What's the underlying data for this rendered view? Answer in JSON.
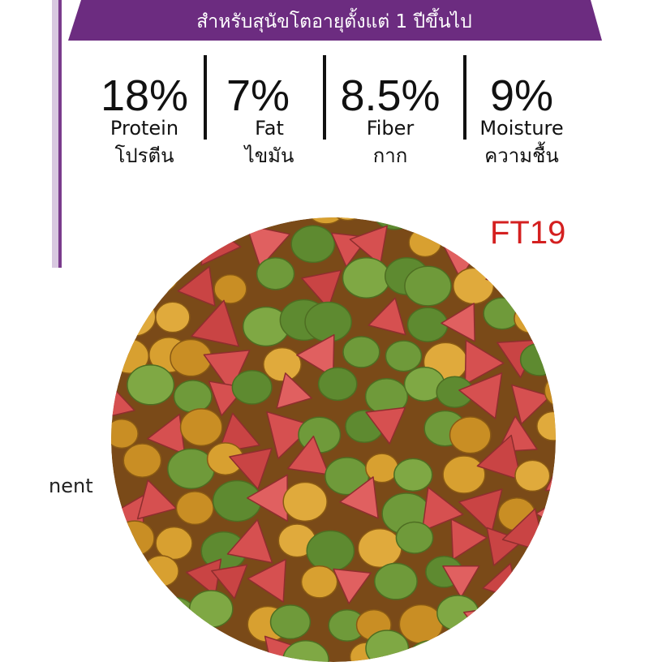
{
  "banner": {
    "text": "สำหรับสุนัขโตอายุตั้งแต่ 1 ปีขึ้นไป"
  },
  "nutrients": [
    {
      "value": "18%",
      "name": "Protein",
      "thai": "โปรตีน"
    },
    {
      "value": "7%",
      "name": "Fat",
      "thai": "ไขมัน"
    },
    {
      "value": "8.5%",
      "name": "Fiber",
      "thai": "กาก"
    },
    {
      "value": "9%",
      "name": "Moisture",
      "thai": "ความชื้น"
    }
  ],
  "code": "FT19",
  "side_text": "nent"
}
